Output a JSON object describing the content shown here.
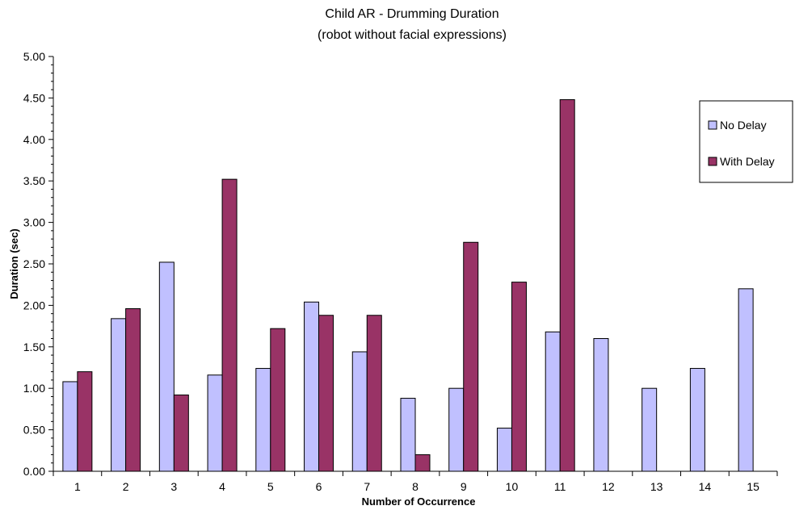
{
  "chart_data": {
    "type": "bar",
    "title": "Child AR  - Drumming Duration",
    "subtitle": "(robot without  facial expressions)",
    "xlabel": "Number of Occurrence",
    "ylabel": "Duration (sec)",
    "ylim": [
      0,
      5
    ],
    "ytick_step": 0.5,
    "yticks": [
      "0.00",
      "0.50",
      "1.00",
      "1.50",
      "2.00",
      "2.50",
      "3.00",
      "3.50",
      "4.00",
      "4.50",
      "5.00"
    ],
    "categories": [
      "1",
      "2",
      "3",
      "4",
      "5",
      "6",
      "7",
      "8",
      "9",
      "10",
      "11",
      "12",
      "13",
      "14",
      "15"
    ],
    "series": [
      {
        "name": "No Delay",
        "color": "#c0c0ff",
        "values": [
          1.08,
          1.84,
          2.52,
          1.16,
          1.24,
          2.04,
          1.44,
          0.88,
          1.0,
          0.52,
          1.68,
          1.6,
          1.0,
          1.24,
          2.2
        ]
      },
      {
        "name": "With Delay",
        "color": "#993366",
        "values": [
          1.2,
          1.96,
          0.92,
          3.52,
          1.72,
          1.88,
          1.88,
          0.2,
          2.76,
          2.28,
          4.48,
          null,
          null,
          null,
          null
        ]
      }
    ],
    "grid": false,
    "legend": "right"
  }
}
